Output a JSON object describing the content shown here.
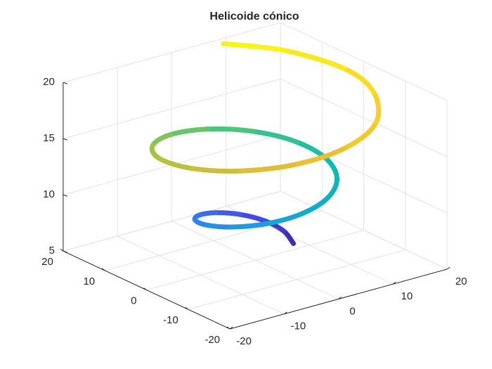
{
  "chart_data": {
    "type": "line3d",
    "title": "Helicoide cónico",
    "x": [
      5.76,
      6.35,
      5.28,
      2.6,
      -1.16,
      -5.12,
      -8.2,
      -9.47,
      -8.39,
      -4.99,
      0.05,
      5.56,
      10.13,
      12.47,
      11.8,
      8.03,
      1.91,
      -5.15,
      -11.4,
      -15.17,
      -15.32,
      -11.66,
      -4.68,
      3.84,
      11.89,
      17.7,
      18.78,
      14.97,
      8.16
    ],
    "y": [
      -1.68,
      1.4,
      4.6,
      7.04,
      7.92,
      6.79,
      3.71,
      -0.71,
      -5.44,
      -9.24,
      -11.0,
      -10.07,
      -6.44,
      -0.83,
      5.46,
      10.85,
      13.87,
      13.56,
      9.75,
      3.2,
      -4.61,
      -11.68,
      -16.34,
      -17.07,
      -13.52,
      -5.39,
      2.85,
      12.5,
      18.26
    ],
    "z": [
      6,
      6.5,
      7,
      7.5,
      8,
      8.5,
      9,
      9.5,
      10,
      10.5,
      11,
      11.5,
      12,
      12.5,
      13,
      13.5,
      14,
      14.5,
      15,
      15.5,
      16,
      16.5,
      17,
      17.5,
      18,
      18.5,
      19,
      19.5,
      20
    ],
    "colormap": [
      "#3e26a8",
      "#4652ef",
      "#2f80f7",
      "#16a4d9",
      "#0cbab4",
      "#4ac57e",
      "#a9c23f",
      "#e6bb36",
      "#fbd22c",
      "#f9fb0e"
    ],
    "xlim": [
      -20,
      20
    ],
    "ylim": [
      -20,
      20
    ],
    "zlim": [
      5,
      20
    ],
    "xticks": [
      -20,
      -10,
      0,
      10,
      20
    ],
    "yticks": [
      -20,
      -10,
      0,
      10,
      20
    ],
    "zticks": [
      5,
      10,
      15,
      20
    ],
    "grid": true
  }
}
